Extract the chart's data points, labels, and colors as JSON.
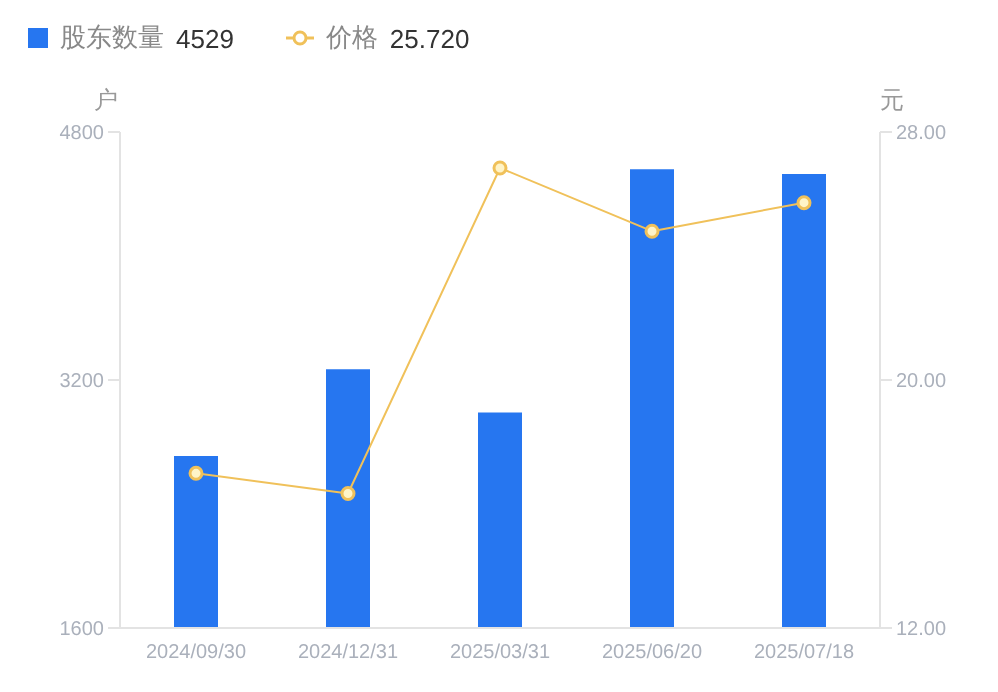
{
  "chart_data": {
    "type": "bar",
    "categories": [
      "2024/09/30",
      "2024/12/31",
      "2025/03/31",
      "2025/06/20",
      "2025/07/18"
    ],
    "series": [
      {
        "name": "股东数量",
        "color": "#2676f0",
        "values": [
          2710,
          3270,
          2990,
          4560,
          4529
        ]
      },
      {
        "name": "价格",
        "type": "line",
        "axis": "y2",
        "color": "#f0c15a",
        "marker": "circle",
        "values": [
          16.99,
          16.34,
          26.84,
          24.8,
          25.72
        ]
      }
    ],
    "ylabel": "户",
    "y2label": "元",
    "ylim": [
      1600,
      4800
    ],
    "yticks": [
      1600,
      3200,
      4800
    ],
    "y2lim": [
      12,
      28
    ],
    "y2ticks": [
      {
        "value": 12,
        "label": "12.00"
      },
      {
        "value": 20,
        "label": "20.00"
      },
      {
        "value": 28,
        "label": "28.00"
      }
    ],
    "annotations": [
      "4529",
      "25.720"
    ],
    "legend": "top left",
    "grid": false
  }
}
